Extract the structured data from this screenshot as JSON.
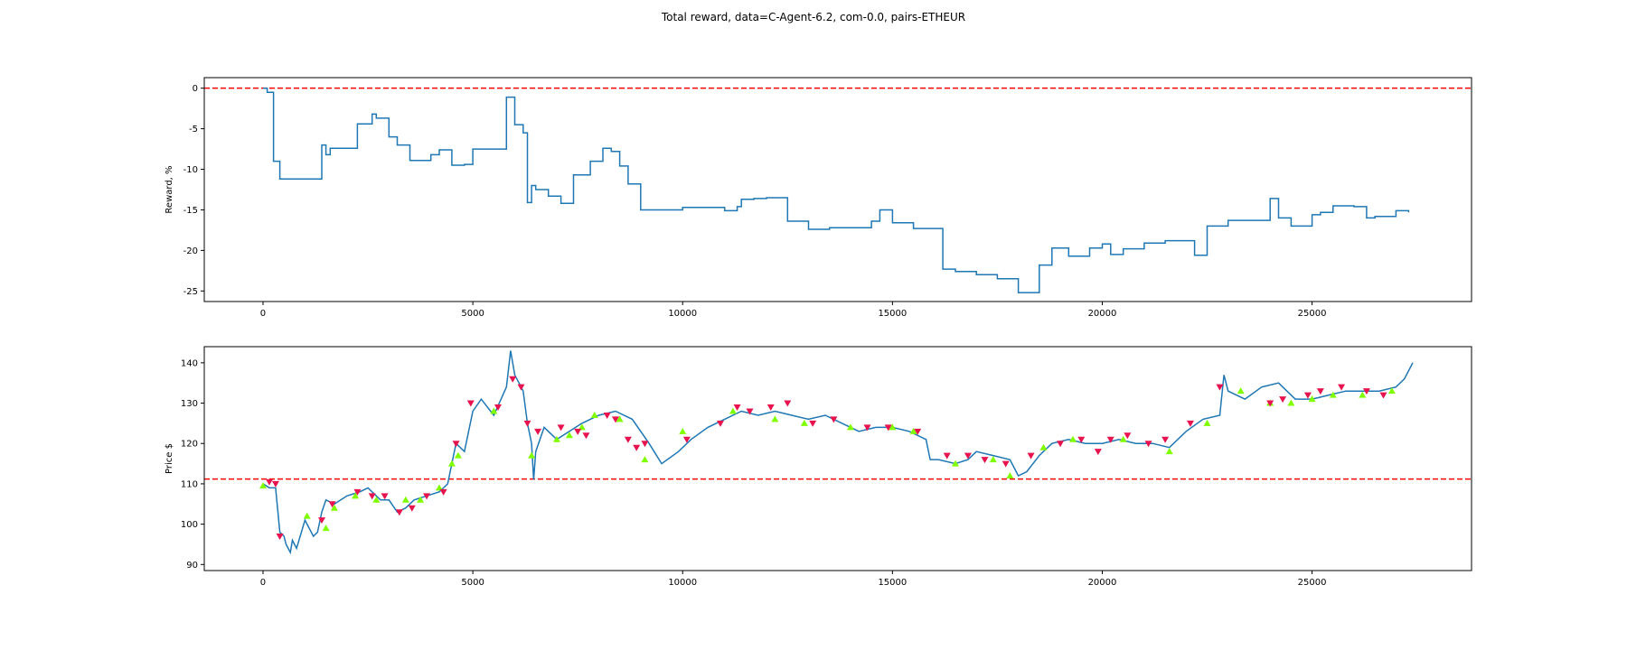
{
  "title": "Total reward, data=C-Agent-6.2, com-0.0, pairs-ETHEUR",
  "chart_data": [
    {
      "type": "line",
      "ylabel": "Reward, %",
      "xlim": [
        -1400,
        28800
      ],
      "ylim": [
        -26.3,
        1.3
      ],
      "xticks": [
        0,
        5000,
        10000,
        15000,
        20000,
        25000
      ],
      "yticks": [
        -25,
        -20,
        -15,
        -10,
        -5,
        0
      ],
      "hline": {
        "y": 0,
        "color": "#ff0000"
      },
      "line_color": "#1f77b4",
      "x": [
        0,
        100,
        200,
        250,
        400,
        1350,
        1400,
        1500,
        1600,
        2250,
        2600,
        2700,
        3000,
        3200,
        3500,
        4000,
        4200,
        4500,
        4800,
        5000,
        5300,
        5700,
        5800,
        5950,
        6000,
        6200,
        6300,
        6400,
        6500,
        6600,
        6800,
        7100,
        7400,
        7800,
        8100,
        8300,
        8500,
        8700,
        9000,
        9200,
        10000,
        11000,
        11300,
        11400,
        11700,
        12000,
        12500,
        13000,
        13500,
        14500,
        14700,
        15000,
        15500,
        16200,
        16500,
        17000,
        17500,
        18000,
        18500,
        18800,
        19200,
        19700,
        20000,
        20200,
        20500,
        21000,
        21500,
        22200,
        22500,
        23000,
        24000,
        24200,
        24500,
        25000,
        25200,
        25500,
        26000,
        26300,
        26500,
        27000,
        27300
      ],
      "y": [
        0,
        -0.5,
        -0.5,
        -9.0,
        -11.2,
        -11.2,
        -7.0,
        -8.2,
        -7.4,
        -4.4,
        -3.2,
        -3.7,
        -6.0,
        -7.0,
        -8.9,
        -8.2,
        -7.6,
        -9.5,
        -9.4,
        -7.5,
        -7.5,
        -7.5,
        -1.1,
        -1.1,
        -4.5,
        -5.5,
        -14.1,
        -12.0,
        -12.5,
        -12.5,
        -13.3,
        -14.2,
        -10.7,
        -9.0,
        -7.4,
        -7.8,
        -9.6,
        -11.8,
        -15.0,
        -15.0,
        -14.7,
        -15.1,
        -14.6,
        -13.7,
        -13.6,
        -13.5,
        -16.4,
        -17.4,
        -17.2,
        -16.4,
        -15.0,
        -16.6,
        -17.3,
        -22.3,
        -22.6,
        -23.0,
        -23.5,
        -25.2,
        -21.8,
        -19.7,
        -20.7,
        -19.7,
        -19.2,
        -20.5,
        -19.8,
        -19.1,
        -18.8,
        -20.6,
        -17.0,
        -16.3,
        -13.6,
        -16.0,
        -17.0,
        -15.6,
        -15.3,
        -14.5,
        -14.6,
        -16.0,
        -15.8,
        -15.1,
        -15.3
      ]
    },
    {
      "type": "line",
      "ylabel": "Price $",
      "xlim": [
        -1400,
        28800
      ],
      "ylim": [
        88.5,
        144.0
      ],
      "xticks": [
        0,
        5000,
        10000,
        15000,
        20000,
        25000
      ],
      "yticks": [
        90,
        100,
        110,
        120,
        130,
        140
      ],
      "hline": {
        "y": 111.2,
        "color": "#ff0000"
      },
      "line_color": "#1f77b4",
      "buy_color": "#7fff00",
      "sell_color": "#e8134e",
      "x": [
        0,
        150,
        300,
        400,
        500,
        550,
        650,
        700,
        800,
        1000,
        1200,
        1300,
        1400,
        1500,
        1700,
        2000,
        2300,
        2500,
        2800,
        3000,
        3200,
        3400,
        3600,
        3900,
        4200,
        4400,
        4600,
        4800,
        5000,
        5200,
        5500,
        5800,
        5900,
        6000,
        6100,
        6200,
        6300,
        6400,
        6450,
        6500,
        6700,
        7000,
        7300,
        7600,
        8000,
        8400,
        8800,
        9200,
        9500,
        9900,
        10200,
        10600,
        11000,
        11400,
        11800,
        12200,
        12600,
        13000,
        13400,
        13800,
        14200,
        14600,
        15000,
        15400,
        15800,
        15900,
        16100,
        16500,
        16800,
        17000,
        17400,
        17800,
        17900,
        18000,
        18200,
        18500,
        18800,
        19200,
        19600,
        20000,
        20400,
        20800,
        21200,
        21600,
        22000,
        22400,
        22800,
        22900,
        23000,
        23400,
        23800,
        24200,
        24600,
        25000,
        25400,
        25800,
        26200,
        26600,
        27000,
        27200,
        27400
      ],
      "y": [
        110,
        109,
        109,
        98,
        97,
        95,
        93,
        96,
        94,
        101,
        97,
        98,
        103,
        106,
        105,
        107,
        108,
        109,
        106,
        106,
        103,
        104,
        106,
        107,
        108,
        110,
        120,
        118,
        128,
        131,
        127,
        134,
        143,
        137,
        135,
        133,
        125,
        120,
        111,
        118,
        124,
        121,
        123,
        125,
        127,
        128,
        126,
        120,
        115,
        118,
        121,
        124,
        126,
        128,
        127,
        128,
        127,
        126,
        127,
        125,
        123,
        124,
        124,
        123,
        121,
        116,
        116,
        115,
        116,
        118,
        117,
        116,
        114,
        112,
        113,
        117,
        120,
        121,
        120,
        120,
        121,
        120,
        120,
        119,
        123,
        126,
        127,
        137,
        133,
        131,
        134,
        135,
        131,
        131,
        132,
        133,
        133,
        133,
        134,
        136,
        140
      ],
      "buy_x": [
        0,
        1050,
        1500,
        1700,
        2200,
        2700,
        3400,
        3750,
        4200,
        4500,
        4650,
        5500,
        6400,
        7000,
        7300,
        7600,
        7900,
        8500,
        9100,
        10000,
        11200,
        12200,
        12900,
        14000,
        15000,
        15500,
        16500,
        17400,
        17800,
        18600,
        19300,
        20500,
        21600,
        22500,
        23300,
        24000,
        24500,
        25000,
        25500,
        26200,
        26900
      ],
      "buy_y": [
        109.5,
        102,
        99,
        104,
        107,
        106,
        106,
        106,
        109,
        115,
        117,
        128,
        117,
        121,
        122,
        124,
        127,
        126,
        116,
        123,
        128,
        126,
        125,
        124,
        124,
        123,
        115,
        116,
        112,
        119,
        121,
        121,
        118,
        125,
        133,
        130,
        130,
        131,
        132,
        132,
        133
      ],
      "sell_x": [
        150,
        300,
        400,
        1400,
        1650,
        2250,
        2600,
        2900,
        3250,
        3550,
        3900,
        4300,
        4600,
        4950,
        5600,
        5950,
        6150,
        6300,
        6550,
        7100,
        7500,
        7700,
        8200,
        8400,
        8700,
        8900,
        9100,
        10100,
        10900,
        11300,
        11600,
        12100,
        12500,
        13100,
        13600,
        14400,
        14900,
        15600,
        16300,
        16800,
        17200,
        17700,
        18300,
        19000,
        19500,
        19900,
        20200,
        20600,
        21100,
        21500,
        22100,
        22800,
        24000,
        24300,
        24900,
        25200,
        25700,
        26300,
        26700
      ],
      "sell_y": [
        110.5,
        110,
        97,
        101,
        105,
        108,
        107,
        107,
        103,
        104,
        107,
        108,
        120,
        130,
        129,
        136,
        134,
        125,
        123,
        124,
        123,
        122,
        127,
        126,
        121,
        119,
        120,
        121,
        125,
        129,
        128,
        129,
        130,
        125,
        126,
        124,
        124,
        123,
        117,
        117,
        116,
        115,
        117,
        120,
        121,
        118,
        121,
        122,
        120,
        121,
        125,
        134,
        130,
        131,
        132,
        133,
        134,
        133,
        132
      ]
    }
  ]
}
